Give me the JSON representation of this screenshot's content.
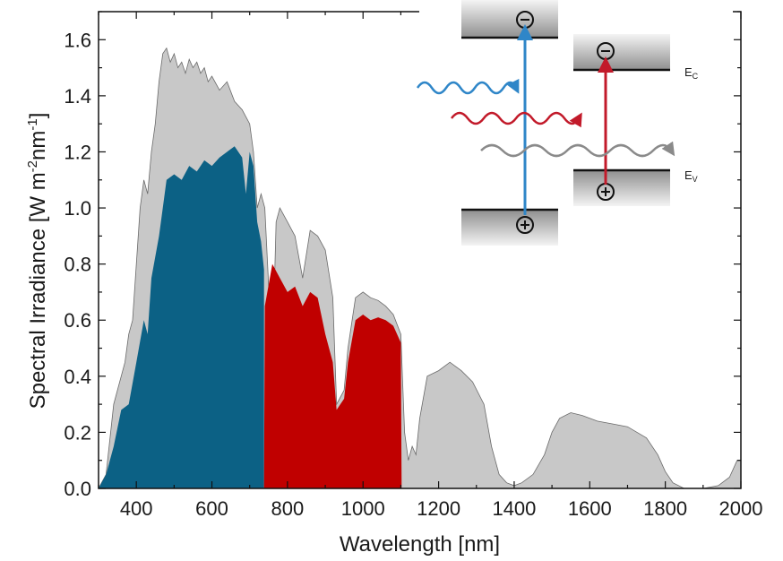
{
  "chart_data": {
    "type": "area",
    "xlabel": "Wavelength [nm]",
    "ylabel_parts": [
      "Spectral Irradiance [W m",
      "-2",
      "nm",
      "-1",
      "]"
    ],
    "xlim": [
      300,
      2000
    ],
    "ylim": [
      0,
      1.7
    ],
    "x_ticks": [
      400,
      600,
      800,
      1000,
      1200,
      1400,
      1600,
      1800,
      2000
    ],
    "y_ticks": [
      0.0,
      0.2,
      0.4,
      0.6,
      0.8,
      1.0,
      1.2,
      1.4,
      1.6
    ],
    "x_tick_labels": [
      "400",
      "600",
      "800",
      "1000",
      "1200",
      "1400",
      "1600",
      "1800",
      "2000"
    ],
    "y_tick_labels": [
      "0.0",
      "0.2",
      "0.4",
      "0.6",
      "0.8",
      "1.0",
      "1.2",
      "1.4",
      "1.6"
    ],
    "grid": false,
    "series": [
      {
        "key": "total",
        "color": "#c8c8c8",
        "points": [
          [
            300,
            0.0
          ],
          [
            320,
            0.05
          ],
          [
            340,
            0.3
          ],
          [
            360,
            0.4
          ],
          [
            370,
            0.45
          ],
          [
            380,
            0.55
          ],
          [
            390,
            0.6
          ],
          [
            400,
            0.8
          ],
          [
            410,
            1.0
          ],
          [
            420,
            1.1
          ],
          [
            430,
            1.05
          ],
          [
            440,
            1.2
          ],
          [
            450,
            1.3
          ],
          [
            460,
            1.45
          ],
          [
            470,
            1.55
          ],
          [
            480,
            1.57
          ],
          [
            490,
            1.52
          ],
          [
            500,
            1.55
          ],
          [
            510,
            1.5
          ],
          [
            520,
            1.52
          ],
          [
            530,
            1.48
          ],
          [
            540,
            1.53
          ],
          [
            550,
            1.5
          ],
          [
            560,
            1.52
          ],
          [
            570,
            1.48
          ],
          [
            580,
            1.5
          ],
          [
            590,
            1.45
          ],
          [
            600,
            1.47
          ],
          [
            620,
            1.42
          ],
          [
            640,
            1.45
          ],
          [
            660,
            1.38
          ],
          [
            680,
            1.35
          ],
          [
            700,
            1.3
          ],
          [
            710,
            1.2
          ],
          [
            720,
            1.0
          ],
          [
            730,
            1.05
          ],
          [
            740,
            1.0
          ],
          [
            760,
            0.45
          ],
          [
            770,
            0.95
          ],
          [
            780,
            1.0
          ],
          [
            800,
            0.95
          ],
          [
            820,
            0.9
          ],
          [
            840,
            0.75
          ],
          [
            860,
            0.92
          ],
          [
            880,
            0.9
          ],
          [
            900,
            0.85
          ],
          [
            920,
            0.68
          ],
          [
            930,
            0.3
          ],
          [
            950,
            0.35
          ],
          [
            960,
            0.5
          ],
          [
            980,
            0.68
          ],
          [
            1000,
            0.7
          ],
          [
            1020,
            0.68
          ],
          [
            1040,
            0.67
          ],
          [
            1060,
            0.65
          ],
          [
            1080,
            0.62
          ],
          [
            1100,
            0.55
          ],
          [
            1110,
            0.2
          ],
          [
            1120,
            0.1
          ],
          [
            1130,
            0.15
          ],
          [
            1140,
            0.12
          ],
          [
            1150,
            0.25
          ],
          [
            1170,
            0.4
          ],
          [
            1200,
            0.42
          ],
          [
            1230,
            0.45
          ],
          [
            1260,
            0.42
          ],
          [
            1290,
            0.38
          ],
          [
            1320,
            0.3
          ],
          [
            1340,
            0.15
          ],
          [
            1360,
            0.05
          ],
          [
            1380,
            0.02
          ],
          [
            1400,
            0.01
          ],
          [
            1420,
            0.02
          ],
          [
            1450,
            0.05
          ],
          [
            1480,
            0.12
          ],
          [
            1500,
            0.2
          ],
          [
            1520,
            0.25
          ],
          [
            1550,
            0.27
          ],
          [
            1580,
            0.26
          ],
          [
            1600,
            0.25
          ],
          [
            1620,
            0.24
          ],
          [
            1660,
            0.23
          ],
          [
            1700,
            0.22
          ],
          [
            1750,
            0.18
          ],
          [
            1780,
            0.12
          ],
          [
            1800,
            0.06
          ],
          [
            1820,
            0.02
          ],
          [
            1850,
            0.0
          ],
          [
            1900,
            0.0
          ],
          [
            1940,
            0.01
          ],
          [
            1970,
            0.04
          ],
          [
            1990,
            0.1
          ],
          [
            2000,
            0.1
          ]
        ]
      },
      {
        "key": "blue-absorbed",
        "color": "#0c6185",
        "points": [
          [
            300,
            0.0
          ],
          [
            320,
            0.05
          ],
          [
            340,
            0.15
          ],
          [
            360,
            0.28
          ],
          [
            380,
            0.3
          ],
          [
            400,
            0.45
          ],
          [
            420,
            0.6
          ],
          [
            430,
            0.55
          ],
          [
            440,
            0.75
          ],
          [
            460,
            0.9
          ],
          [
            470,
            1.0
          ],
          [
            480,
            1.1
          ],
          [
            500,
            1.12
          ],
          [
            520,
            1.1
          ],
          [
            540,
            1.15
          ],
          [
            560,
            1.13
          ],
          [
            580,
            1.17
          ],
          [
            600,
            1.15
          ],
          [
            620,
            1.18
          ],
          [
            640,
            1.2
          ],
          [
            660,
            1.22
          ],
          [
            680,
            1.18
          ],
          [
            690,
            1.05
          ],
          [
            700,
            1.2
          ],
          [
            710,
            1.15
          ],
          [
            720,
            0.95
          ],
          [
            730,
            0.88
          ],
          [
            738,
            0.78
          ],
          [
            738,
            0.0
          ]
        ]
      },
      {
        "key": "red-absorbed",
        "color": "#c00000",
        "points": [
          [
            738,
            0.0
          ],
          [
            740,
            0.65
          ],
          [
            760,
            0.8
          ],
          [
            780,
            0.75
          ],
          [
            800,
            0.7
          ],
          [
            820,
            0.72
          ],
          [
            840,
            0.65
          ],
          [
            860,
            0.7
          ],
          [
            880,
            0.68
          ],
          [
            900,
            0.55
          ],
          [
            920,
            0.45
          ],
          [
            930,
            0.28
          ],
          [
            950,
            0.32
          ],
          [
            960,
            0.45
          ],
          [
            980,
            0.6
          ],
          [
            1000,
            0.62
          ],
          [
            1020,
            0.6
          ],
          [
            1040,
            0.61
          ],
          [
            1060,
            0.6
          ],
          [
            1080,
            0.58
          ],
          [
            1100,
            0.52
          ],
          [
            1102,
            0.0
          ]
        ]
      }
    ]
  },
  "inset": {
    "ec_label": "E",
    "ec_sub": "C",
    "ev_label": "E",
    "ev_sub": "V"
  }
}
